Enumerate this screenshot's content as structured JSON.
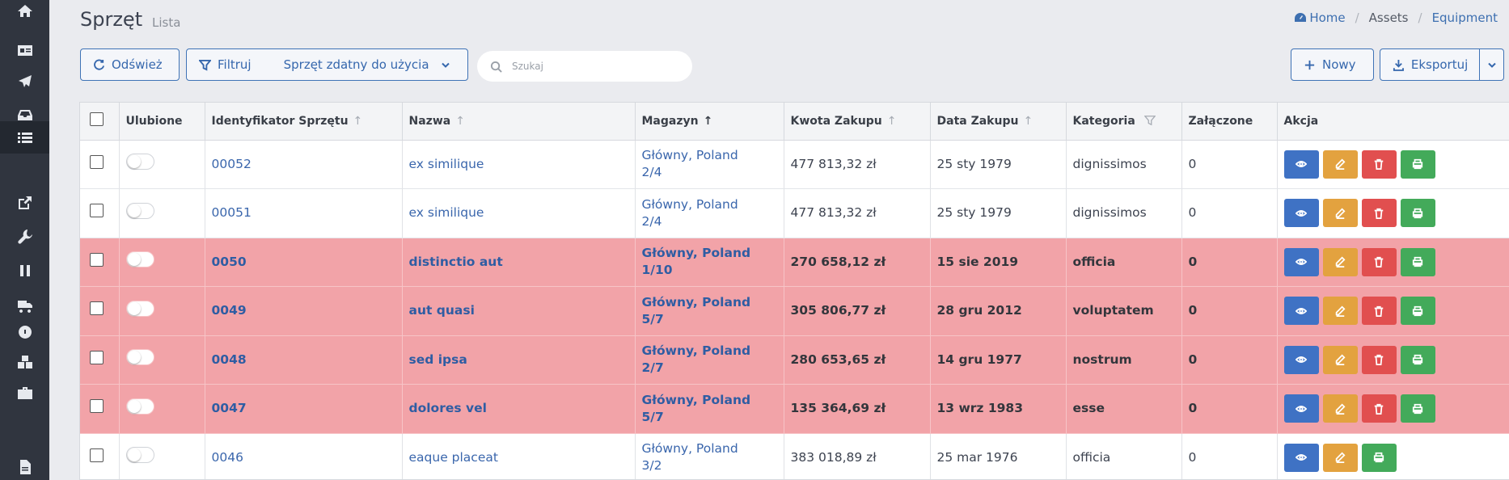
{
  "page": {
    "title": "Sprzęt",
    "subtitle": "Lista"
  },
  "breadcrumb": {
    "home": "Home",
    "assets": "Assets",
    "equipment": "Equipment"
  },
  "toolbar": {
    "refresh_label": "Odśwież",
    "filter_label": "Filtruj",
    "filter_value": "Sprzęt zdatny do użycia",
    "search_placeholder": "Szukaj",
    "new_label": "Nowy",
    "export_label": "Eksportuj"
  },
  "sidebar": {
    "icons": [
      "home-icon",
      "id-card-icon",
      "plane-icon",
      "inbox-icon",
      "list-icon",
      "external-link-icon",
      "wrench-icon",
      "pause-icon",
      "truck-icon",
      "dashboard-icon",
      "cubes-icon",
      "briefcase-icon",
      "file-icon"
    ],
    "active_index": 4
  },
  "table": {
    "columns": {
      "favorites": "Ulubione",
      "id": "Identyfikator Sprzętu",
      "name": "Nazwa",
      "warehouse": "Magazyn",
      "amount": "Kwota Zakupu",
      "date": "Data Zakupu",
      "category": "Kategoria",
      "attached": "Załączone",
      "action": "Akcja"
    },
    "rows": [
      {
        "id": "00052",
        "name": "ex similique",
        "warehouse_line1": "Główny, Poland",
        "warehouse_line2": "2/4",
        "amount": "477 813,32 zł",
        "date": "25 sty 1979",
        "category": "dignissimos",
        "attached": "0",
        "highlight": false,
        "deletable": true
      },
      {
        "id": "00051",
        "name": "ex similique",
        "warehouse_line1": "Główny, Poland",
        "warehouse_line2": "2/4",
        "amount": "477 813,32 zł",
        "date": "25 sty 1979",
        "category": "dignissimos",
        "attached": "0",
        "highlight": false,
        "deletable": true
      },
      {
        "id": "0050",
        "name": "distinctio aut",
        "warehouse_line1": "Główny, Poland",
        "warehouse_line2": "1/10",
        "amount": "270 658,12 zł",
        "date": "15 sie 2019",
        "category": "officia",
        "attached": "0",
        "highlight": true,
        "deletable": true
      },
      {
        "id": "0049",
        "name": "aut quasi",
        "warehouse_line1": "Główny, Poland",
        "warehouse_line2": "5/7",
        "amount": "305 806,77 zł",
        "date": "28 gru 2012",
        "category": "voluptatem",
        "attached": "0",
        "highlight": true,
        "deletable": true
      },
      {
        "id": "0048",
        "name": "sed ipsa",
        "warehouse_line1": "Główny, Poland",
        "warehouse_line2": "2/7",
        "amount": "280 653,65 zł",
        "date": "14 gru 1977",
        "category": "nostrum",
        "attached": "0",
        "highlight": true,
        "deletable": true
      },
      {
        "id": "0047",
        "name": "dolores vel",
        "warehouse_line1": "Główny, Poland",
        "warehouse_line2": "5/7",
        "amount": "135 364,69 zł",
        "date": "13 wrz 1983",
        "category": "esse",
        "attached": "0",
        "highlight": true,
        "deletable": true
      },
      {
        "id": "0046",
        "name": "eaque placeat",
        "warehouse_line1": "Główny, Poland",
        "warehouse_line2": "3/2",
        "amount": "383 018,89 zł",
        "date": "25 mar 1976",
        "category": "officia",
        "attached": "0",
        "highlight": false,
        "deletable": false
      }
    ]
  },
  "colors": {
    "primary": "#3f72c4",
    "warning": "#e3a23f",
    "danger": "#e14f4f",
    "success": "#43aa5a",
    "row_alert": "#f2a3a8",
    "sidebar": "#30353f"
  }
}
